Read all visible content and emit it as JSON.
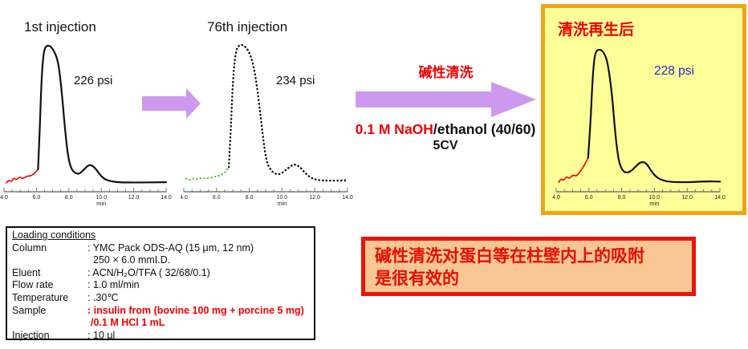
{
  "colors": {
    "arrow": "#cc99ee",
    "red_text": "#f00000",
    "blue_text": "#2222cc",
    "yellow_box_bg": "#ffff99",
    "yellow_box_border": "#f0a318",
    "conclusion_bg": "#f8c694",
    "conclusion_border": "#e8150c",
    "axis": "#777777",
    "tick_label": "#222222"
  },
  "process": {
    "step_label": "碱性清洗",
    "reagent_highlight": "0.1 M NaOH",
    "reagent_rest": "/ethanol (40/60)",
    "volume": "5CV"
  },
  "loading_conditions": {
    "header": "Loading conditions",
    "rows": [
      {
        "label": "Column",
        "value": ": YMC Pack ODS-AQ (15 μm, 12 nm)",
        "red": false,
        "indent": 0
      },
      {
        "label": "",
        "value": "250 × 6.0 mmI.D.",
        "red": false,
        "indent": 7
      },
      {
        "label": "Eluent",
        "value": ": ACN/H₂O/TFA ( 32/68/0.1)",
        "red": false,
        "indent": 0
      },
      {
        "label": "Flow rate",
        "value": ": 1.0 ml/min",
        "red": false,
        "indent": 0
      },
      {
        "label": "Temperature",
        "value": ": .30℃",
        "red": false,
        "indent": 0
      },
      {
        "label": "Sample",
        "value": ": insulin from (bovine 100 mg + porcine 5 mg)",
        "red": true,
        "indent": 0
      },
      {
        "label": "",
        "value": "/0.1 M HCl 1 mL",
        "red": true,
        "indent": 4
      },
      {
        "label": "Injection",
        "value": ": 10 μl",
        "red": false,
        "indent": 0
      }
    ]
  },
  "conclusion": {
    "line1": "碱性清洗对蛋白等在柱壁内上的吸附",
    "line2": "是很有效的"
  },
  "chart_data": [
    {
      "type": "line",
      "title": "1st injection",
      "pressure_label": "226 psi",
      "xlabel": "min",
      "xlim": [
        4.0,
        14.0
      ],
      "x_ticks": [
        "4.0",
        "6.0",
        "8.0",
        "10.0",
        "12.0",
        "14.0"
      ],
      "ylabel": "",
      "grid": false,
      "series": [
        {
          "name": "pre-peak baseline disturbance",
          "color": "#f00000",
          "style": "solid",
          "width": 1.6,
          "points": [
            [
              4.15,
              0.0
            ],
            [
              4.3,
              0.025
            ],
            [
              4.45,
              0.005
            ],
            [
              4.6,
              0.04
            ],
            [
              4.75,
              0.02
            ],
            [
              4.95,
              0.045
            ],
            [
              5.15,
              0.03
            ],
            [
              5.4,
              0.05
            ],
            [
              5.65,
              0.05
            ],
            [
              5.9,
              0.07
            ],
            [
              6.1,
              0.1
            ]
          ]
        },
        {
          "name": "insulin chromatogram (1st injection)",
          "color": "#111111",
          "style": "solid",
          "width": 2.2,
          "points": [
            [
              6.1,
              0.1
            ],
            [
              6.22,
              0.42
            ],
            [
              6.32,
              0.78
            ],
            [
              6.45,
              0.96
            ],
            [
              6.6,
              1.0
            ],
            [
              6.85,
              1.0
            ],
            [
              7.1,
              0.96
            ],
            [
              7.35,
              0.88
            ],
            [
              7.55,
              0.68
            ],
            [
              7.75,
              0.4
            ],
            [
              7.95,
              0.19
            ],
            [
              8.15,
              0.1
            ],
            [
              8.4,
              0.07
            ],
            [
              8.65,
              0.065
            ],
            [
              8.95,
              0.1
            ],
            [
              9.25,
              0.135
            ],
            [
              9.55,
              0.12
            ],
            [
              9.85,
              0.07
            ],
            [
              10.15,
              0.03
            ],
            [
              10.55,
              0.012
            ],
            [
              11.1,
              0.004
            ],
            [
              12.0,
              0.003
            ],
            [
              14.0,
              0.005
            ]
          ]
        }
      ]
    },
    {
      "type": "line",
      "title": "76th injection",
      "pressure_label": "234 psi",
      "xlabel": "min",
      "xlim": [
        4.0,
        14.0
      ],
      "x_ticks": [
        "4.0",
        "6.0",
        "8.0",
        "10.0",
        "12.0",
        "14.0"
      ],
      "ylabel": "",
      "grid": false,
      "series": [
        {
          "name": "pre-peak baseline disturbance",
          "color": "#55b33b",
          "style": "dotted",
          "width": 2.1,
          "points": [
            [
              4.15,
              0.025
            ],
            [
              4.35,
              0.01
            ],
            [
              4.55,
              0.03
            ],
            [
              4.8,
              0.02
            ],
            [
              5.05,
              0.03
            ],
            [
              5.35,
              0.028
            ],
            [
              5.65,
              0.033
            ],
            [
              5.95,
              0.04
            ],
            [
              6.25,
              0.05
            ],
            [
              6.55,
              0.07
            ],
            [
              6.75,
              0.11
            ]
          ]
        },
        {
          "name": "insulin chromatogram (76th injection)",
          "color": "#111111",
          "style": "dotted",
          "width": 2.4,
          "points": [
            [
              6.75,
              0.11
            ],
            [
              6.88,
              0.4
            ],
            [
              7.0,
              0.75
            ],
            [
              7.15,
              0.94
            ],
            [
              7.35,
              1.0
            ],
            [
              7.65,
              1.0
            ],
            [
              7.95,
              0.96
            ],
            [
              8.2,
              0.88
            ],
            [
              8.45,
              0.72
            ],
            [
              8.7,
              0.47
            ],
            [
              8.9,
              0.26
            ],
            [
              9.1,
              0.13
            ],
            [
              9.4,
              0.075
            ],
            [
              9.7,
              0.055
            ],
            [
              10.0,
              0.065
            ],
            [
              10.35,
              0.1
            ],
            [
              10.75,
              0.135
            ],
            [
              11.1,
              0.11
            ],
            [
              11.45,
              0.06
            ],
            [
              11.8,
              0.028
            ],
            [
              12.2,
              0.014
            ],
            [
              12.8,
              0.01
            ],
            [
              14.0,
              0.013
            ]
          ]
        }
      ]
    },
    {
      "type": "line",
      "title": "清洗再生后",
      "pressure_label": "228 psi",
      "xlabel": "min",
      "xlim": [
        4.0,
        14.0
      ],
      "x_ticks": [
        "4.0",
        "6.0",
        "8.0",
        "10.0",
        "12.0",
        "14.0"
      ],
      "ylabel": "",
      "grid": false,
      "series": [
        {
          "name": "pre-peak baseline disturbance",
          "color": "#f00000",
          "style": "solid",
          "width": 1.6,
          "points": [
            [
              4.15,
              0.005
            ],
            [
              4.3,
              0.035
            ],
            [
              4.45,
              0.015
            ],
            [
              4.62,
              0.05
            ],
            [
              4.8,
              0.03
            ],
            [
              5.0,
              0.06
            ],
            [
              5.25,
              0.05
            ],
            [
              5.5,
              0.09
            ],
            [
              5.75,
              0.14
            ],
            [
              5.95,
              0.19
            ]
          ]
        },
        {
          "name": "insulin chromatogram (after regeneration)",
          "color": "#111111",
          "style": "solid",
          "width": 2.2,
          "points": [
            [
              5.95,
              0.19
            ],
            [
              6.1,
              0.45
            ],
            [
              6.22,
              0.78
            ],
            [
              6.35,
              0.96
            ],
            [
              6.5,
              1.0
            ],
            [
              6.75,
              1.0
            ],
            [
              6.95,
              0.97
            ],
            [
              7.15,
              0.9
            ],
            [
              7.4,
              0.68
            ],
            [
              7.6,
              0.38
            ],
            [
              7.8,
              0.17
            ],
            [
              8.05,
              0.09
            ],
            [
              8.3,
              0.075
            ],
            [
              8.6,
              0.09
            ],
            [
              8.9,
              0.13
            ],
            [
              9.2,
              0.16
            ],
            [
              9.5,
              0.15
            ],
            [
              9.8,
              0.09
            ],
            [
              10.1,
              0.045
            ],
            [
              10.5,
              0.018
            ],
            [
              11.0,
              0.007
            ],
            [
              12.0,
              0.005
            ],
            [
              13.2,
              0.012
            ],
            [
              14.0,
              0.01
            ]
          ]
        }
      ]
    }
  ]
}
